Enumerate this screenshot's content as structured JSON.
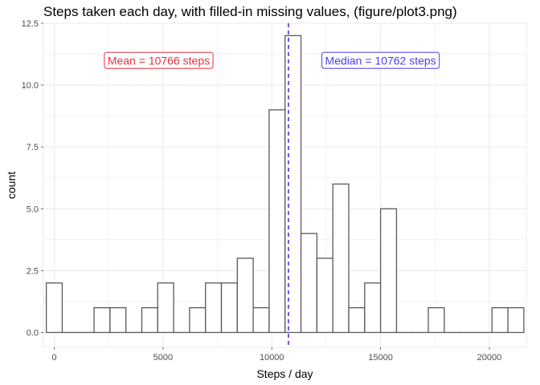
{
  "chart_data": {
    "type": "bar",
    "title": "Steps taken each day, with filled-in missing values, (figure/plot3.png)",
    "xlabel": "Steps / day",
    "ylabel": "count",
    "xlim": [
      -500,
      21700
    ],
    "ylim": [
      -0.6,
      12.5
    ],
    "x_ticks": [
      0,
      5000,
      10000,
      15000,
      20000
    ],
    "x_tick_labels": [
      "0",
      "5000",
      "10000",
      "15000",
      "20000"
    ],
    "y_ticks": [
      0.0,
      2.5,
      5.0,
      7.5,
      10.0,
      12.5
    ],
    "y_tick_labels": [
      "0.0",
      "2.5",
      "5.0",
      "7.5",
      "10.0",
      "12.5"
    ],
    "grid": true,
    "bin_width": 731.7,
    "bins": [
      {
        "center": 0,
        "count": 2
      },
      {
        "center": 732,
        "count": 0
      },
      {
        "center": 1463,
        "count": 0
      },
      {
        "center": 2195,
        "count": 1
      },
      {
        "center": 2927,
        "count": 1
      },
      {
        "center": 3658,
        "count": 0
      },
      {
        "center": 4390,
        "count": 1
      },
      {
        "center": 5122,
        "count": 2
      },
      {
        "center": 5854,
        "count": 0
      },
      {
        "center": 6585,
        "count": 1
      },
      {
        "center": 7317,
        "count": 2
      },
      {
        "center": 8049,
        "count": 2
      },
      {
        "center": 8780,
        "count": 3
      },
      {
        "center": 9512,
        "count": 1
      },
      {
        "center": 10244,
        "count": 9
      },
      {
        "center": 10975,
        "count": 12
      },
      {
        "center": 11707,
        "count": 4
      },
      {
        "center": 12439,
        "count": 3
      },
      {
        "center": 13171,
        "count": 6
      },
      {
        "center": 13902,
        "count": 1
      },
      {
        "center": 14634,
        "count": 2
      },
      {
        "center": 15366,
        "count": 5
      },
      {
        "center": 16097,
        "count": 0
      },
      {
        "center": 16829,
        "count": 0
      },
      {
        "center": 17561,
        "count": 1
      },
      {
        "center": 18292,
        "count": 0
      },
      {
        "center": 19024,
        "count": 0
      },
      {
        "center": 19756,
        "count": 0
      },
      {
        "center": 20488,
        "count": 1
      },
      {
        "center": 21219,
        "count": 1
      }
    ],
    "reference_lines": [
      {
        "axis": "x",
        "value": 10766,
        "color": "#e8303f",
        "style": "dashed"
      },
      {
        "axis": "x",
        "value": 10762,
        "color": "#4b3ff0",
        "style": "dashed"
      }
    ],
    "annotations": [
      {
        "text": "Mean = 10766 steps",
        "x": 4800,
        "y": 11,
        "color": "#e8303f"
      },
      {
        "text": "Median = 10762 steps",
        "x": 15000,
        "y": 11,
        "color": "#4b3ff0"
      }
    ],
    "colors": {
      "bar_fill": "#ffffff",
      "bar_stroke": "#595959",
      "grid": "#ebebeb",
      "panel_border": "#ebebeb"
    }
  }
}
